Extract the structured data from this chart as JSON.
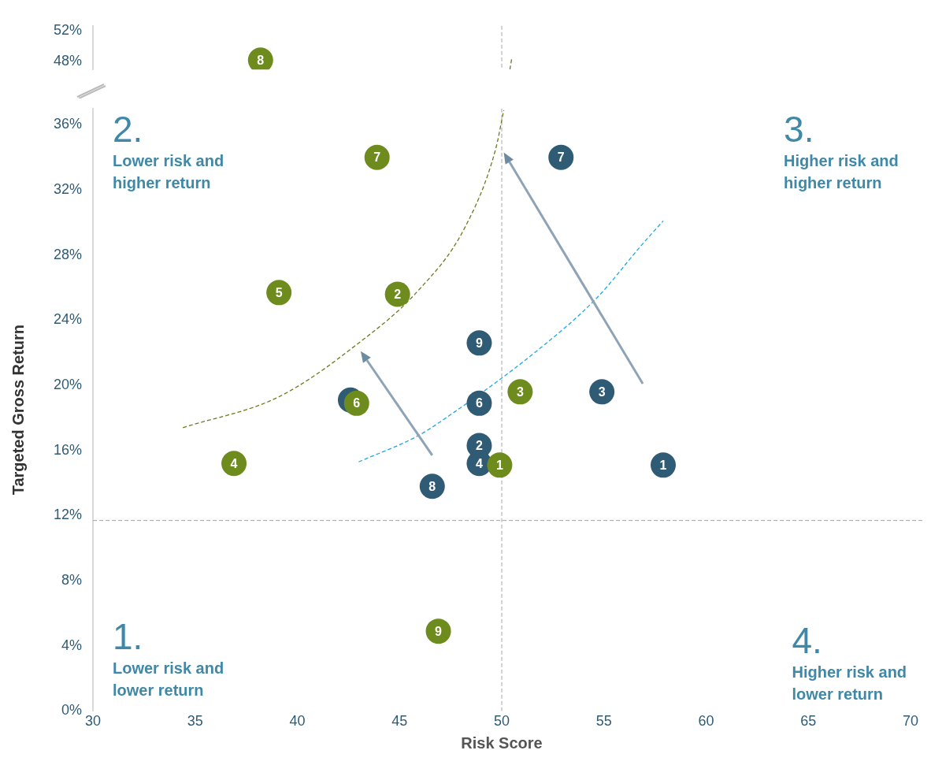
{
  "chart_data": [
    {
      "type": "scatter",
      "xlim": [
        30,
        70
      ],
      "ylim": [
        47,
        52.6
      ],
      "yticks": [
        {
          "value": 48,
          "label": "48%"
        },
        {
          "value": 52,
          "label": "52%"
        }
      ],
      "tick_labels": "y",
      "marker": "circle",
      "series": [
        {
          "color": "#6e8b1e",
          "x": [
            38.2
          ],
          "values": [
            48.2
          ]
        },
        {
          "type": "line",
          "color": "#6e7a1e",
          "line_style": "dashed",
          "marker": "none",
          "x": [
            50.4,
            50.5
          ],
          "values": [
            47,
            48.6
          ]
        }
      ],
      "ref_lines": [
        {
          "axis": "x",
          "value": 50,
          "color": "#a6a6a6",
          "line_style": "dashed"
        }
      ],
      "annotations": [
        {
          "text": "8",
          "x": 38.2,
          "y": 48.2
        }
      ]
    },
    {
      "type": "scatter",
      "xlabel": "Risk Score",
      "ylabel": "Targeted Gross Return",
      "xlim": [
        30,
        70
      ],
      "xticks": [
        30,
        35,
        40,
        45,
        50,
        55,
        60,
        65,
        70
      ],
      "ylim": [
        0,
        37
      ],
      "yticks": [
        {
          "value": 0,
          "label": "0%"
        },
        {
          "value": 4,
          "label": "4%"
        },
        {
          "value": 8,
          "label": "8%"
        },
        {
          "value": 12,
          "label": "12%"
        },
        {
          "value": 16,
          "label": "16%"
        },
        {
          "value": 20,
          "label": "20%"
        },
        {
          "value": 24,
          "label": "24%"
        },
        {
          "value": 28,
          "label": "28%"
        },
        {
          "value": 32,
          "label": "32%"
        },
        {
          "value": 36,
          "label": "36%"
        }
      ],
      "marker": "circle",
      "series": [
        {
          "color": "#6e8b1e",
          "x": [
            43.9,
            39.1,
            44.9,
            42.9,
            36.9,
            50.9,
            49.9,
            46.9
          ],
          "values": [
            34.0,
            25.7,
            25.6,
            18.9,
            15.2,
            19.6,
            15.1,
            4.9
          ]
        },
        {
          "color": "#2f5b75",
          "x": [
            52.9,
            48.9,
            54.9,
            48.9,
            48.9,
            48.9,
            57.9,
            46.6,
            42.6
          ],
          "values": [
            34.0,
            22.6,
            19.6,
            18.9,
            16.3,
            15.2,
            15.1,
            13.8,
            19.1
          ]
        },
        {
          "type": "line",
          "color": "#6e7a1e",
          "line_style": "dashed",
          "marker": "none",
          "x": [
            34.4,
            39.1,
            42.9,
            45.9,
            48.2,
            49.7,
            50.1
          ],
          "values": [
            17.4,
            19.3,
            22.5,
            25.8,
            29.7,
            34.5,
            36.9
          ]
        },
        {
          "type": "line",
          "color": "#1ea8e0",
          "line_style": "dashed",
          "marker": "none",
          "x": [
            43.0,
            45.9,
            47.5,
            51.6,
            54.6,
            56.9,
            57.9
          ],
          "values": [
            15.3,
            16.9,
            18.2,
            22.0,
            25.3,
            28.7,
            30.1
          ]
        }
      ],
      "ref_lines": [
        {
          "axis": "x",
          "value": 50,
          "color": "#a6a6a6",
          "line_style": "dashed"
        },
        {
          "axis": "y",
          "value": 11.7,
          "color": "#a6a6a6",
          "line_style": "dashed"
        }
      ],
      "annotations": [
        "2.",
        "Lower risk and higher return",
        "3.",
        "Higher risk and higher return",
        "1.",
        "Lower risk and lower return",
        "4.",
        "Higher risk and lower return",
        {
          "text": "7",
          "x": 43.9,
          "y": 34.0
        },
        {
          "text": "5",
          "x": 39.1,
          "y": 25.7
        },
        {
          "text": "2",
          "x": 44.9,
          "y": 25.6
        },
        {
          "text": "6",
          "x": 42.9,
          "y": 18.9
        },
        {
          "text": "4",
          "x": 36.9,
          "y": 15.2
        },
        {
          "text": "3",
          "x": 50.9,
          "y": 19.6
        },
        {
          "text": "1",
          "x": 49.9,
          "y": 15.1
        },
        {
          "text": "9",
          "x": 46.9,
          "y": 4.9
        },
        {
          "text": "7",
          "x": 52.9,
          "y": 34.0
        },
        {
          "text": "9",
          "x": 48.9,
          "y": 22.6
        },
        {
          "text": "3",
          "x": 54.9,
          "y": 19.6
        },
        {
          "text": "6",
          "x": 48.9,
          "y": 18.9
        },
        {
          "text": "2",
          "x": 48.9,
          "y": 16.3
        },
        {
          "text": "4",
          "x": 48.9,
          "y": 15.2
        },
        {
          "text": "1",
          "x": 57.9,
          "y": 15.1
        },
        {
          "text": "8",
          "x": 46.6,
          "y": 13.8
        }
      ]
    }
  ]
}
